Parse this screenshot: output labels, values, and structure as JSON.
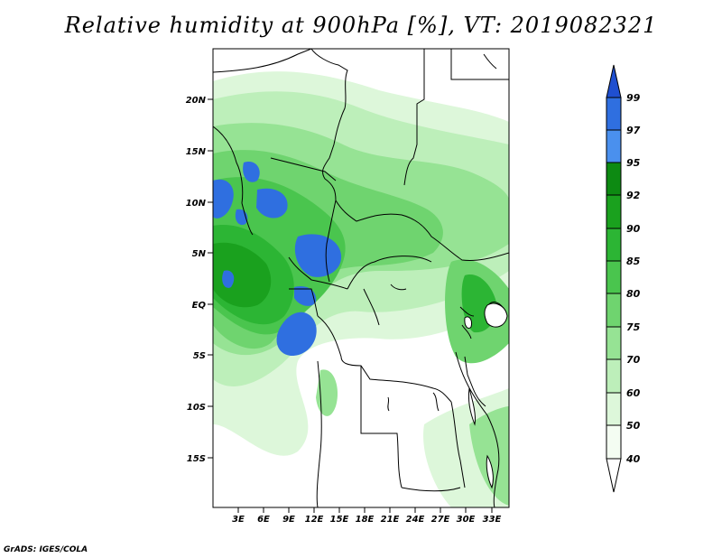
{
  "title": "Relative humidity at 900hPa [%], VT: 2019082321",
  "credit": "GrADS: IGES/COLA",
  "map": {
    "lon_range": [
      0,
      35
    ],
    "lat_range": [
      -20,
      25
    ],
    "lat_ticks": [
      "20N",
      "15N",
      "10N",
      "5N",
      "EQ",
      "5S",
      "10S",
      "15S"
    ],
    "lon_ticks": [
      "3E",
      "6E",
      "9E",
      "12E",
      "15E",
      "18E",
      "21E",
      "24E",
      "27E",
      "30E",
      "33E"
    ]
  },
  "colorbar": {
    "levels": [
      "99",
      "97",
      "95",
      "92",
      "90",
      "85",
      "80",
      "75",
      "70",
      "60",
      "50",
      "40"
    ],
    "colors": [
      "#1f4fd0",
      "#2f6fe0",
      "#4a90ee",
      "#0d8a12",
      "#1aa11e",
      "#2cb534",
      "#4ac54e",
      "#6fd46f",
      "#96e394",
      "#bdefba",
      "#ddf7da",
      "#f4fdf2",
      "#ffffff"
    ]
  }
}
